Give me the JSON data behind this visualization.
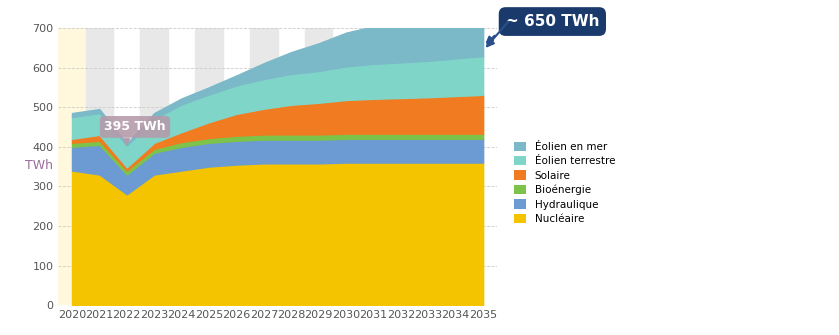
{
  "years": [
    2020,
    2021,
    2022,
    2023,
    2024,
    2025,
    2026,
    2027,
    2028,
    2029,
    2030,
    2031,
    2032,
    2033,
    2034,
    2035
  ],
  "nucleaire": [
    340,
    330,
    280,
    330,
    340,
    350,
    355,
    358,
    358,
    358,
    360,
    360,
    360,
    360,
    360,
    360
  ],
  "hydraulique": [
    60,
    75,
    50,
    55,
    60,
    60,
    60,
    60,
    60,
    60,
    60,
    60,
    60,
    60,
    60,
    60
  ],
  "bioenergie": [
    10,
    10,
    10,
    10,
    12,
    12,
    13,
    13,
    13,
    13,
    13,
    13,
    13,
    13,
    13,
    13
  ],
  "solaire": [
    10,
    15,
    8,
    15,
    25,
    40,
    55,
    65,
    75,
    80,
    85,
    88,
    90,
    92,
    95,
    98
  ],
  "eolien_terrestre": [
    55,
    55,
    55,
    60,
    70,
    70,
    72,
    75,
    78,
    80,
    85,
    88,
    90,
    92,
    95,
    98
  ],
  "eolien_en_mer": [
    10,
    10,
    5,
    15,
    15,
    18,
    25,
    40,
    55,
    70,
    85,
    95,
    105,
    112,
    120,
    130
  ],
  "colors": {
    "nucleaire": "#F5C400",
    "hydraulique": "#6B9BD2",
    "bioenergie": "#7DC34A",
    "solaire": "#F07B20",
    "eolien_terrestre": "#7FD6C8",
    "eolien_en_mer": "#7BB8C8"
  },
  "labels": {
    "nucleaire": "Nucléaire",
    "hydraulique": "Hydraulique",
    "bioenergie": "Bioénergie",
    "solaire": "Solaire",
    "eolien_terrestre": "Éolien terrestre",
    "eolien_en_mer": "Éolien en mer"
  },
  "ylabel": "TWh",
  "ylim": [
    0,
    700
  ],
  "yticks": [
    0,
    100,
    200,
    300,
    400,
    500,
    600,
    700
  ],
  "stripe_color": "#E8E8E8",
  "bg_color": "#FFFFFF",
  "stripe_years_odd": [
    2021,
    2023,
    2025,
    2027,
    2029,
    2031,
    2033
  ],
  "pre2022_color": "#FFF8DC",
  "ann395_color": "#B59AAA",
  "ann650_color": "#1A3A6C",
  "arrow_color": "#2B4F8C"
}
